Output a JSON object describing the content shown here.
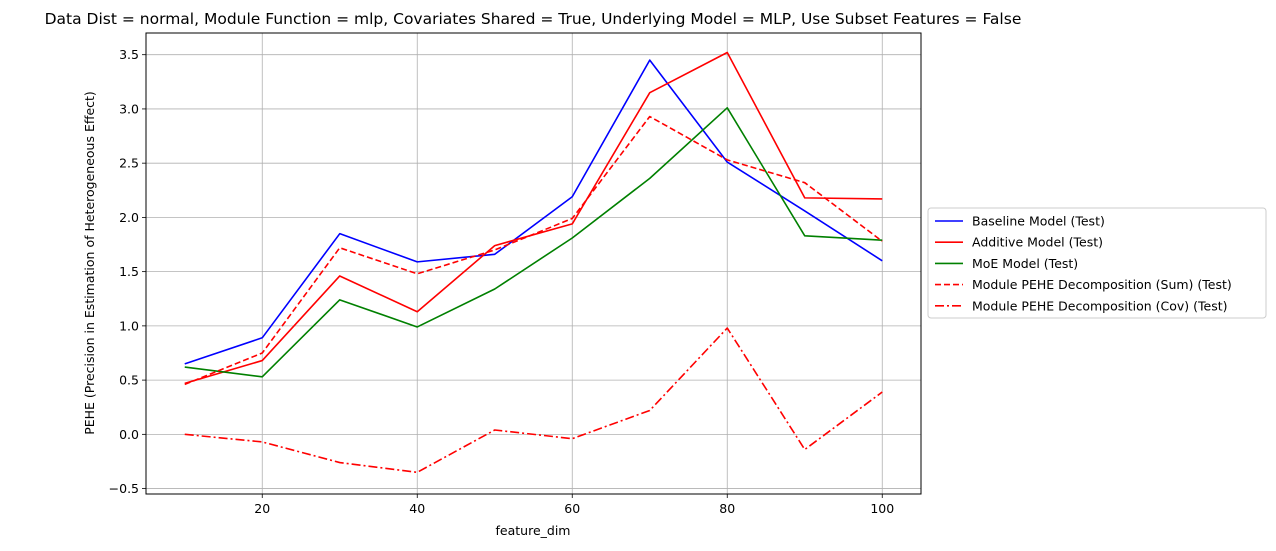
{
  "chart_data": {
    "type": "line",
    "title": "Data Dist = normal, Module Function = mlp, Covariates Shared = True, Underlying Model = MLP, Use Subset Features = False",
    "xlabel": "feature_dim",
    "ylabel": "PEHE (Precision in Estimation of Heterogeneous Effect)",
    "x": [
      10,
      20,
      30,
      40,
      50,
      60,
      70,
      80,
      90,
      100
    ],
    "xlim": [
      5,
      105
    ],
    "ylim": [
      -0.55,
      3.7
    ],
    "xticks": [
      20,
      40,
      60,
      80,
      100
    ],
    "yticks": [
      -0.5,
      0.0,
      0.5,
      1.0,
      1.5,
      2.0,
      2.5,
      3.0,
      3.5
    ],
    "xtick_labels": [
      "20",
      "40",
      "60",
      "80",
      "100"
    ],
    "ytick_labels": [
      "−0.5",
      "0.0",
      "0.5",
      "1.0",
      "1.5",
      "2.0",
      "2.5",
      "3.0",
      "3.5"
    ],
    "grid": true,
    "legend_position": "right, outside plot",
    "series": [
      {
        "name": "Baseline Model (Test)",
        "color": "#0000ff",
        "dash": "solid",
        "values": [
          0.65,
          0.89,
          1.85,
          1.59,
          1.66,
          2.19,
          3.45,
          2.51,
          2.06,
          1.6
        ]
      },
      {
        "name": "Additive Model (Test)",
        "color": "#ff0000",
        "dash": "solid",
        "values": [
          0.47,
          0.68,
          1.46,
          1.13,
          1.74,
          1.94,
          3.15,
          3.52,
          2.18,
          2.17
        ]
      },
      {
        "name": "MoE Model (Test)",
        "color": "#008000",
        "dash": "solid",
        "values": [
          0.62,
          0.53,
          1.24,
          0.99,
          1.34,
          1.81,
          2.36,
          3.01,
          1.83,
          1.79
        ]
      },
      {
        "name": "Module PEHE Decomposition (Sum) (Test)",
        "color": "#ff0000",
        "dash": "dashed",
        "values": [
          0.46,
          0.75,
          1.72,
          1.48,
          1.7,
          1.99,
          2.93,
          2.53,
          2.32,
          1.78
        ]
      },
      {
        "name": "Module PEHE Decomposition (Cov) (Test)",
        "color": "#ff0000",
        "dash": "dashdot",
        "values": [
          0.0,
          -0.07,
          -0.26,
          -0.35,
          0.04,
          -0.04,
          0.22,
          0.98,
          -0.14,
          0.39
        ]
      }
    ]
  }
}
